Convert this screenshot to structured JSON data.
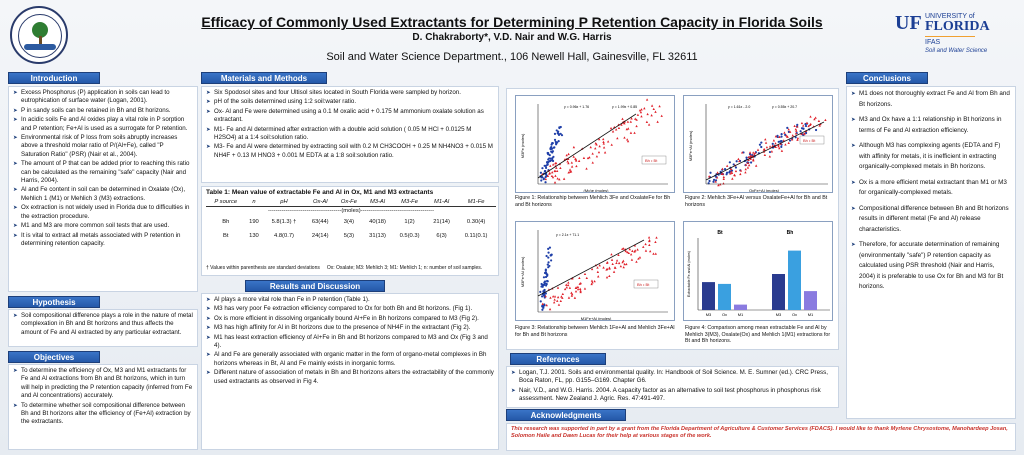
{
  "header": {
    "title": "Efficacy of Commonly Used Extractants for Determining P Retention Capacity in Florida Soils",
    "authors": "D. Chakraborty*, V.D. Nair and W.G. Harris",
    "department": "Soil and Water Science Department., 106 Newell Hall, Gainesville, FL 32611",
    "logo_right": {
      "uf": "UF",
      "university": "UNIVERSITY of",
      "florida": "FLORIDA",
      "ifas": "IFAS",
      "dept": "Soil and Water Science"
    }
  },
  "introduction": {
    "heading": "Introduction",
    "items": [
      "Excess Phosphorus (P) application in soils can lead to eutrophication of surface water (Logan, 2001).",
      "P in sandy soils can be retained in Bh and Bt horizons.",
      "In acidic soils Fe and Al oxides play a vital role in P sorption and P retention; Fe+Al is used as a surrogate for P retention.",
      "Environmental risk of P loss from soils abruptly increases above a threshold molar ratio of P/(Al+Fe), called \"P Saturation Ratio\" (PSR) (Nair et al., 2004).",
      "The amount of P that can be added prior to reaching this ratio can be calculated as the remaining \"safe\" capacity (Nair and Harris, 2004).",
      "Al and Fe content in soil can be determined in Oxalate (Ox), Mehlich 1 (M1) or Mehlich 3 (M3) extractions.",
      " Ox extraction is not widely used in Florida due to difficulties in the extraction procedure.",
      " M1 and M3 are more common soil tests that are used.",
      "It is vital to extract all metals associated with P retention in determining retention capacity."
    ]
  },
  "hypothesis": {
    "heading": "Hypothesis",
    "items": [
      "Soil compositional difference plays a role in the nature of metal complexation in Bh and Bt horizons and thus affects the amount of Fe and Al extracted by any particular extractant."
    ]
  },
  "objectives": {
    "heading": "Objectives",
    "items": [
      "To determine the efficiency of Ox, M3 and M1 extractants for Fe and Al extractions from Bh and Bt horizons, which in turn will help in predicting the P retention capacity (inferred from Fe and Al concentrations) accurately.",
      "To determine whether soil compositional difference between Bh and Bt horizons alter the efficiency of (Fe+Al) extraction by the extractants."
    ]
  },
  "materials": {
    "heading": "Materials and Methods",
    "items": [
      "Six Spodosol sites and four Ultisol sites located  in South Florida were sampled by horizon.",
      "pH of the soils determined using 1:2 soil:water ratio.",
      "Ox- Al and Fe were determined using a 0.1 M oxalic acid + 0.175 M ammonium oxalate solution as extractant.",
      "M1- Fe and Al determined after extraction with a double acid solution ( 0.05 M HCl + 0.0125 M H2SO4) at a 1:4 soil:solution ratio.",
      "M3- Fe and Al were determined by extracting soil with 0.2 M CH3COOH + 0.25 M NH4NO3 + 0.015 M NH4F + 0.13 M HNO3 + 0.001 M EDTA at a 1:8 soil:solution ratio."
    ]
  },
  "table1": {
    "title": "Table 1: Mean value of extractable Fe and Al in Ox, M1 and M3 extractants",
    "columns": [
      "P source",
      "n",
      "pH",
      "Ox-Al",
      "Ox-Fe",
      "M3-Al",
      "M3-Fe",
      "M1-Al",
      "M1-Fe"
    ],
    "units": "--------------------------------------(moles)--------------------------------------",
    "rows": [
      [
        "Bh",
        "190",
        "5.8(1.3) †",
        "63(44)",
        "3(4)",
        "40(18)",
        "1(2)",
        "21(14)",
        "0.30(4)"
      ],
      [
        "Bt",
        "130",
        "4.8(0.7)",
        "24(14)",
        "5(3)",
        "31(13)",
        "0.5(0.3)",
        "6(3)",
        "0.11(0.1)"
      ]
    ],
    "footnote_left": "† Values within parenthesis are standard deviations",
    "footnote_right": "Ox: Oxalate; M3: Mehlich 3; M1: Mehlich 1; n: number of soil samples."
  },
  "results": {
    "heading": "Results and Discussion",
    "items": [
      "Al plays a more vital role than Fe in P retention (Table 1).",
      "M3 has very poor Fe extraction efficiency compared to Ox for both Bh and Bt horizons. (Fig 1).",
      "Ox is more efficient in dissolving organically bound Al+Fe in Bh horizons compared to M3 (Fig 2).",
      "M3 has high affinity for Al in Bt horizons due to the presence of NH4F in the extractant (Fig 2).",
      "M1 has least extraction efficiency of Al+Fe in Bh and Bt horizons compared to M3 and Ox (Fig 3 and 4).",
      "Al and Fe are generally associated with organic matter in the form of organo-metal complexes in Bh horizons whereas in Bt,  Al and Fe mainly exists in inorganic forms.",
      "Different nature of  association of metals in Bh and Bt horizons alters the extractability of the commonly used extractants as observed in Fig 4."
    ]
  },
  "figures": {
    "fig1_caption": "Figure 1: Relationship between Mehlich 3Fe and OxalateFe for Bh and Bt horizons",
    "fig2_caption": "Figure 2: Mehlich 3Fe+Al versus OxalateFe+Al for Bh and Bt horizons",
    "fig3_caption": "Figure 3: Relationship between Mehlich 1Fe+Al and Mehlich 3Fe+Al for Bh and Bt horizons",
    "fig4_caption": "Figure 4: Comparison among mean extractable Fe and Al by Mehlich 3(M3), Oxalate(Ox) and Mehlich 1(M1) extractions for Bt and Bh horizons.",
    "legend_bh": "Bh",
    "legend_bt": "Bt",
    "fig1_eq_bh": "y = 0.96x + 1.76",
    "fig1_eq_bt": "y = 1.99x + 0.85",
    "fig2_eq_bh": "y = 1.61x - 2.0",
    "fig2_eq_bt": "y = 0.55x + 20.7",
    "fig3_eq": "y = 2.1x + 71.1",
    "fig1_xlabel": "(Mo)e (moles)",
    "fig1_ylabel": "M3Fe (moles)",
    "fig2_xlabel": "OxFe+Al (moles)",
    "fig2_ylabel": "M3Fe+Al (moles)",
    "fig3_xlabel": "M1Fe+Al (moles)",
    "fig3_ylabel": "M3Fe+Al (moles)",
    "fig4_ylabel": "Extractable Fe and Al (moles)",
    "fig4_group_bt": "Bt",
    "fig4_group_bh": "Bh"
  },
  "chart_data": [
    {
      "type": "bar",
      "title": "",
      "groups": [
        "Bt",
        "Bh"
      ],
      "categories": [
        "M3",
        "Ox",
        "M1"
      ],
      "series": [
        {
          "values": [
            31,
            29,
            6
          ],
          "color": "#2a3b8f"
        },
        {
          "values": [
            40,
            66,
            21
          ],
          "color": "#3aa0e0"
        }
      ],
      "ylabel": "Extractable Fe and Al (moles)",
      "ylim": [
        0,
        80
      ]
    }
  ],
  "conclusions": {
    "heading": "Conclusions",
    "items": [
      "M1 does not thoroughly extract Fe and Al from Bh and Bt horizons.",
      "M3 and Ox have a 1:1 relationship in Bt horizons in terms of Fe and Al extraction efficiency.",
      "Although M3 has complexing agents (EDTA and F) with affinity for metals, it is inefficient in extracting  organically-complexed metals in Bh horizons.",
      "Ox is a more efficient metal extractant than M1 or M3 for organically-complexed metals.",
      "Compositional difference between Bh and Bt horizons results in different metal (Fe and Al) release characteristics.",
      "Therefore, for accurate determination of remaining (environmentally \"safe\") P retention capacity as calculated using PSR threshold (Nair and Harris, 2004) it is preferable to use Ox for Bh and M3 for Bt  horizons."
    ]
  },
  "references": {
    "heading": "References",
    "items": [
      "Logan, T.J. 2001. Soils and environmental quality. In: Handbook of  Soil Science. M. E. Sumner (ed.). CRC Press, Boca Raton, FL, pp. G155–G169. Chapter G6.",
      "Nair, V.D., and W.G. Harris. 2004. A capacity factor as an alternative to soil test phosphorus in phosphorus risk assessment. New Zealand J. Agric. Res. 47:491-497."
    ]
  },
  "acknowledgments": {
    "heading": "Acknowledgments",
    "text": "This research was supported in part by a grant from the Florida Department of Agriculture & Customer Services (FDACS). I would like to thank Myrlene Chrysostome, Manohardeep Josan, Solomon Haile and Dawn Lucas for their help at various stages of the work."
  }
}
